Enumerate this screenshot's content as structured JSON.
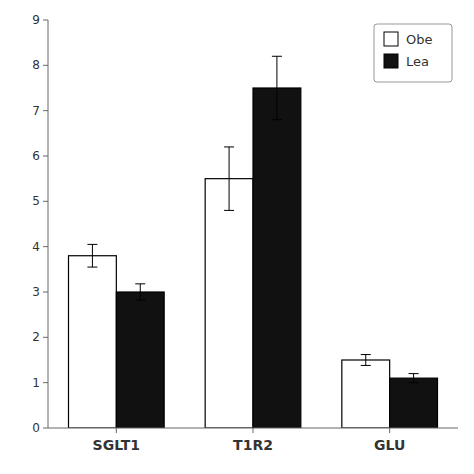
{
  "chart_data": {
    "type": "bar",
    "categories": [
      "SGLT1",
      "T1R2",
      "GLU"
    ],
    "series": [
      {
        "name": "Obe",
        "color": "#ffffff",
        "values": [
          3.8,
          5.5,
          1.5
        ],
        "errors": [
          0.25,
          0.7,
          0.12
        ]
      },
      {
        "name": "Lea",
        "color": "#111111",
        "values": [
          3.0,
          7.5,
          1.1
        ],
        "errors": [
          0.18,
          0.7,
          0.1
        ]
      }
    ],
    "ylim": [
      0,
      9
    ],
    "yticks": [
      0,
      1,
      2,
      3,
      4,
      5,
      6,
      7,
      8,
      9
    ],
    "legend": "upper right"
  }
}
